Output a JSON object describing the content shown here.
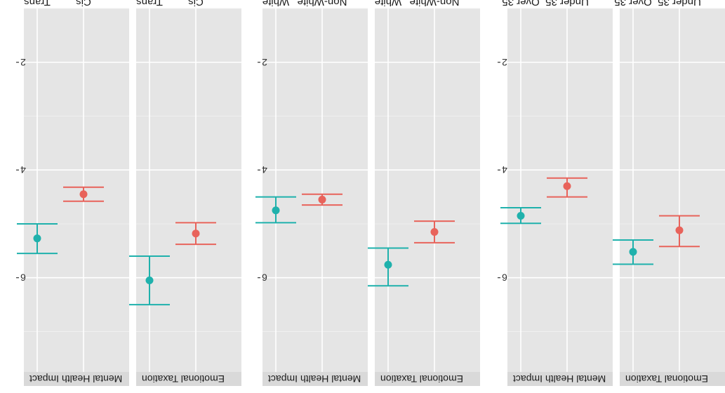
{
  "chart_data": {
    "type": "errorbar",
    "orientation": "rotated 180 degrees",
    "value_axis": {
      "range": [
        1.0,
        7.75
      ],
      "ticks": [
        2,
        4,
        6
      ],
      "tick_labels": [
        "2",
        "4",
        "6"
      ]
    },
    "colors": {
      "first": "#e8635b",
      "second": "#1fb1ac"
    },
    "groups": [
      {
        "id": "age",
        "strip_labels": [
          "Emotional Taxation",
          "Mental Health Impact"
        ],
        "categories": [
          "Under 35",
          "Over 35"
        ],
        "panels": [
          {
            "strip": "Emotional Taxation",
            "points": [
              {
                "category": "Under 35",
                "mean": 5.12,
                "low": 4.85,
                "high": 5.42
              },
              {
                "category": "Over 35",
                "mean": 5.52,
                "low": 5.3,
                "high": 5.75
              }
            ]
          },
          {
            "strip": "Mental Health Impact",
            "points": [
              {
                "category": "Under 35",
                "mean": 4.3,
                "low": 4.15,
                "high": 4.5
              },
              {
                "category": "Over 35",
                "mean": 4.85,
                "low": 4.7,
                "high": 4.99
              }
            ]
          }
        ]
      },
      {
        "id": "race",
        "strip_labels": [
          "Emotional Taxation",
          "Mental Health Impact"
        ],
        "categories": [
          "Non-White",
          "White"
        ],
        "panels": [
          {
            "strip": "Emotional Taxation",
            "points": [
              {
                "category": "Non-White",
                "mean": 5.15,
                "low": 4.95,
                "high": 5.35
              },
              {
                "category": "White",
                "mean": 5.76,
                "low": 5.45,
                "high": 6.15
              }
            ]
          },
          {
            "strip": "Mental Health Impact",
            "points": [
              {
                "category": "Non-White",
                "mean": 4.55,
                "low": 4.45,
                "high": 4.65
              },
              {
                "category": "White",
                "mean": 4.75,
                "low": 4.5,
                "high": 4.98
              }
            ]
          }
        ]
      },
      {
        "id": "gender",
        "strip_labels": [
          "Emotional Taxation",
          "Mental Health Impact"
        ],
        "categories": [
          "Cis",
          "Trans"
        ],
        "panels": [
          {
            "strip": "Emotional Taxation",
            "points": [
              {
                "category": "Cis",
                "mean": 5.18,
                "low": 4.98,
                "high": 5.38
              },
              {
                "category": "Trans",
                "mean": 6.05,
                "low": 5.6,
                "high": 6.5
              }
            ]
          },
          {
            "strip": "Mental Health Impact",
            "points": [
              {
                "category": "Cis",
                "mean": 4.45,
                "low": 4.32,
                "high": 4.58
              },
              {
                "category": "Trans",
                "mean": 5.27,
                "low": 5.0,
                "high": 5.55
              }
            ]
          }
        ]
      }
    ]
  }
}
